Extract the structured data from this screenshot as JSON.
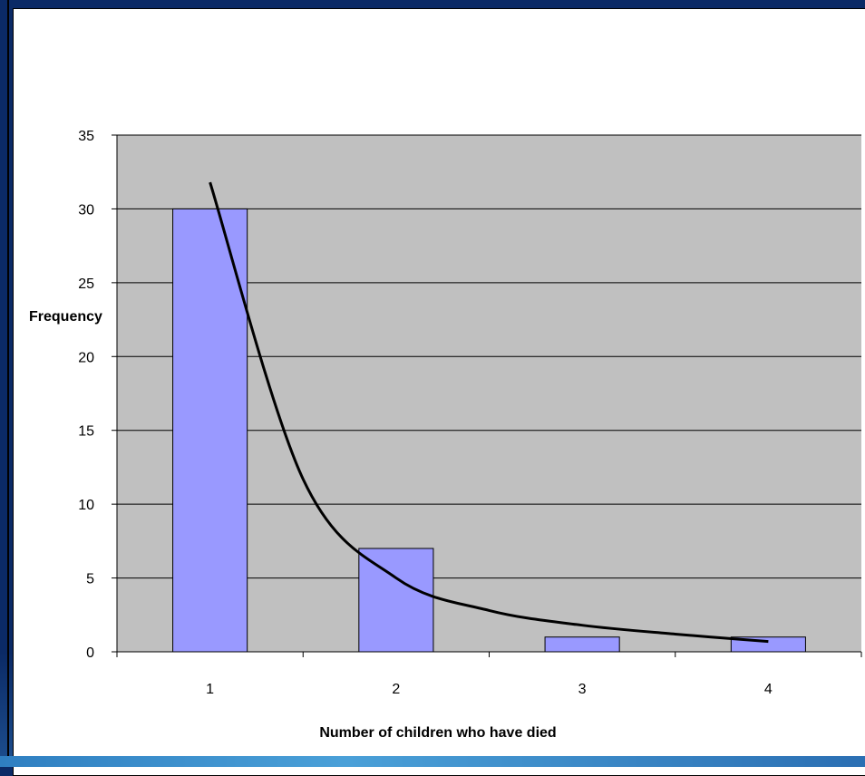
{
  "chart_data": {
    "type": "bar",
    "categories": [
      "1",
      "2",
      "3",
      "4"
    ],
    "values": [
      30,
      7,
      1,
      1
    ],
    "trendline": {
      "type": "power",
      "x": [
        1.0,
        1.5,
        2.0,
        2.5,
        3.0,
        3.5,
        4.0
      ],
      "y": [
        31.8,
        11.7,
        5.0,
        2.8,
        1.8,
        1.2,
        0.7
      ]
    },
    "xlabel": "Number of children who have died",
    "ylabel": "Frequency",
    "ylim": [
      0,
      35
    ],
    "yticks": [
      "0",
      "5",
      "10",
      "15",
      "20",
      "25",
      "30",
      "35"
    ],
    "grid": true,
    "colors": {
      "bar_fill": "#9999ff",
      "bar_stroke": "#000000",
      "plot_bg": "#c0c0c0",
      "gridline": "#000000",
      "trendline": "#000000"
    }
  }
}
